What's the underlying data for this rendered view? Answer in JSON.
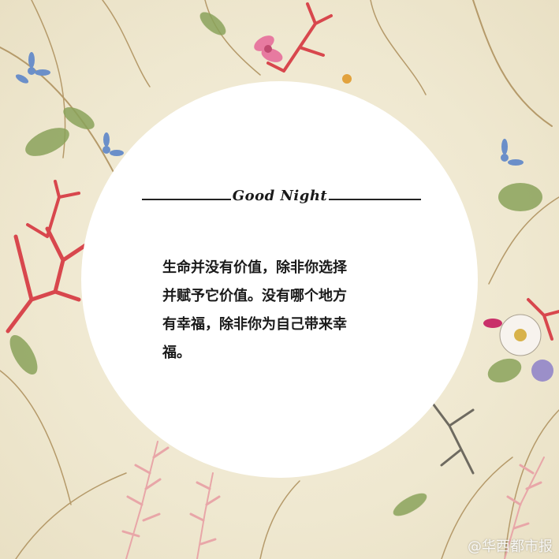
{
  "card": {
    "heading": "Good Night",
    "quote_lines": [
      "生命并没有价值，除非你选择",
      "并赋予它价值。没有哪个地方",
      "有幸福，除非你为自己带来幸",
      "福。"
    ]
  },
  "watermark": "@华西都市报",
  "colors": {
    "background": "#efe8d0",
    "circle": "#ffffff",
    "text": "#1a1a1a",
    "coral": "#d8474d",
    "leaf": "#8aa25a",
    "pink_fern": "#e8a6a8",
    "blue_flower": "#6b8fc9"
  }
}
